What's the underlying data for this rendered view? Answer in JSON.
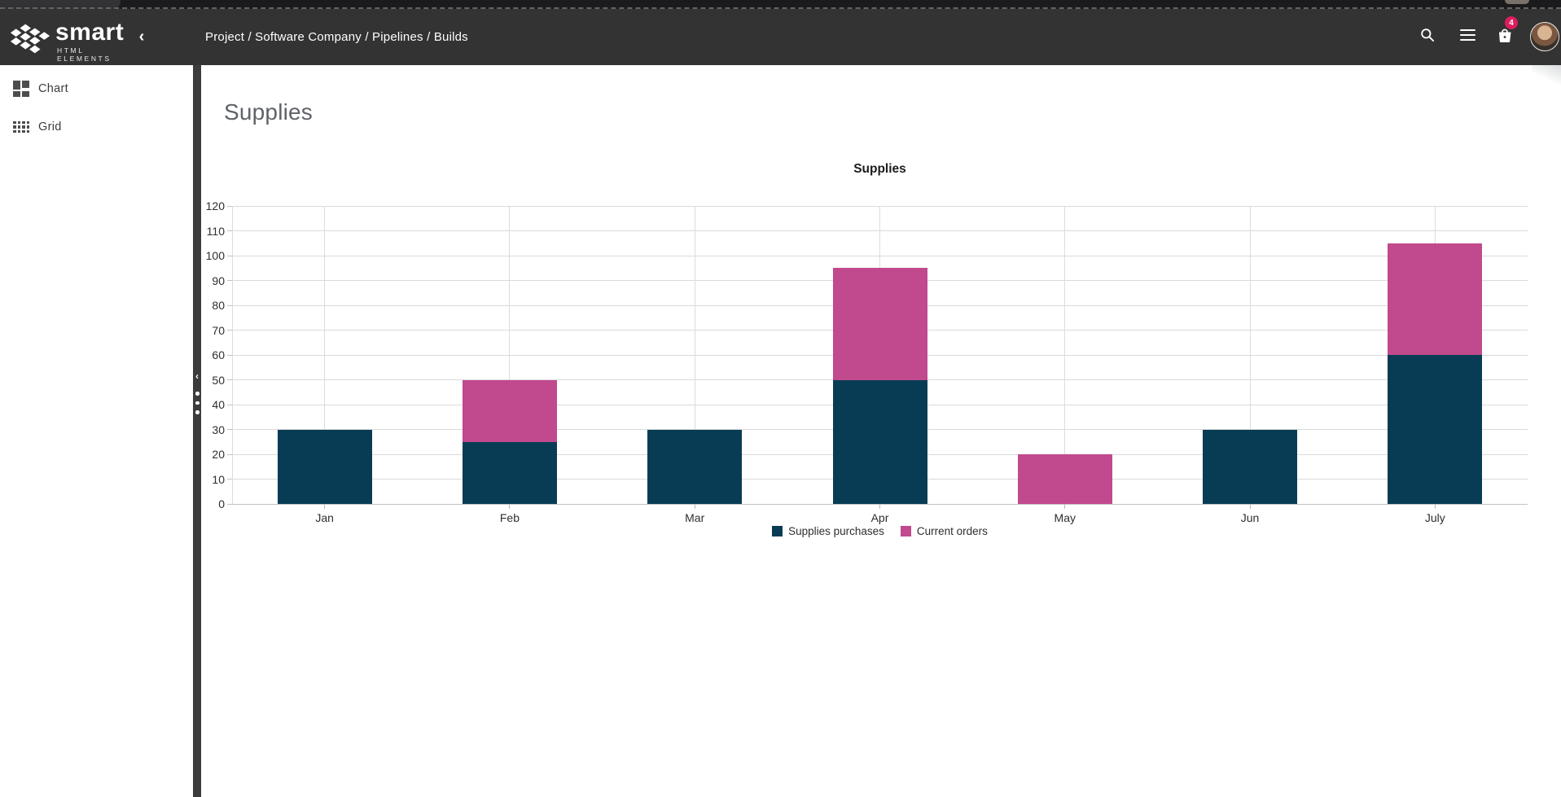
{
  "header": {
    "brand": {
      "name": "smart",
      "tagline": "HTML ELEMENTS"
    },
    "breadcrumb": "Project / Software Company / Pipelines / Builds",
    "cart_badge": "4",
    "colors": {
      "header_bg": "#333333",
      "badge": "#dd1d5d"
    }
  },
  "icons": {
    "chevron_left": "‹",
    "splitter_chevron": "‹"
  },
  "sidebar": {
    "items": [
      {
        "label": "Chart",
        "icon": "dashboard-icon"
      },
      {
        "label": "Grid",
        "icon": "grid-icon"
      }
    ]
  },
  "page": {
    "title": "Supplies"
  },
  "chart_data": {
    "type": "bar",
    "stacked": true,
    "title": "Supplies",
    "categories": [
      "Jan",
      "Feb",
      "Mar",
      "Apr",
      "May",
      "Jun",
      "July"
    ],
    "series": [
      {
        "name": "Supplies purchases",
        "color": "#083c55",
        "values": [
          30,
          25,
          30,
          50,
          0,
          30,
          60
        ]
      },
      {
        "name": "Current orders",
        "color": "#c1498d",
        "values": [
          0,
          25,
          0,
          45,
          20,
          0,
          45
        ]
      }
    ],
    "xlabel": "",
    "ylabel": "",
    "ylim": [
      0,
      120
    ],
    "ytick_step": 10,
    "grid": true,
    "legend_position": "bottom"
  }
}
